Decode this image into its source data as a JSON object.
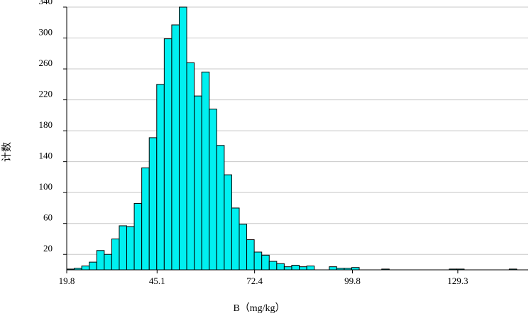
{
  "chart_data": {
    "type": "bar",
    "subtype": "histogram",
    "xlabel": "B（mg/kg）",
    "ylabel": "计数",
    "x_tick_labels": [
      "19.8",
      "45.1",
      "72.4",
      "99.8",
      "129.3"
    ],
    "x_ticks": [
      19.8,
      45.1,
      72.4,
      99.8,
      129.3
    ],
    "y_tick_labels": [
      "20",
      "60",
      "100",
      "140",
      "180",
      "220",
      "260",
      "300",
      "340"
    ],
    "y_ticks": [
      20,
      60,
      100,
      140,
      180,
      220,
      260,
      300,
      340
    ],
    "xlim": [
      19.8,
      149.0
    ],
    "ylim": [
      0,
      340
    ],
    "grid": "horizontal",
    "bar_color": "#00f0f0",
    "bar_edge_color": "#000000",
    "bin_width": 2.1,
    "bin_start": 19.8,
    "counts": [
      1,
      2,
      5,
      10,
      25,
      20,
      40,
      57,
      56,
      86,
      132,
      171,
      240,
      299,
      317,
      340,
      268,
      225,
      256,
      208,
      161,
      123,
      80,
      59,
      39,
      23,
      19,
      11,
      8,
      4,
      6,
      4,
      5,
      0,
      0,
      4,
      2,
      2,
      3,
      0,
      0,
      0,
      1,
      0,
      0,
      0,
      0,
      0,
      0,
      0,
      0,
      1,
      1,
      0,
      0,
      0,
      0,
      0,
      0,
      1,
      0,
      0
    ]
  }
}
